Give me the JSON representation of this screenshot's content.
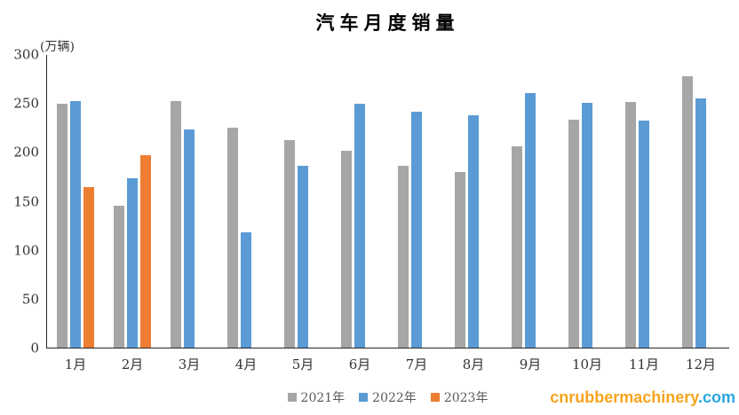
{
  "chart_data": {
    "type": "bar",
    "title": "汽车月度销量",
    "unit_label": "(万辆)",
    "categories": [
      "1月",
      "2月",
      "3月",
      "4月",
      "5月",
      "6月",
      "7月",
      "8月",
      "9月",
      "10月",
      "11月",
      "12月"
    ],
    "series": [
      {
        "name": "2021年",
        "color": "#A6A6A6",
        "values": [
          250.3,
          145.5,
          252.6,
          225.2,
          212.8,
          201.5,
          186.4,
          179.9,
          206.7,
          233.3,
          252.2,
          278.6
        ]
      },
      {
        "name": "2022年",
        "color": "#5B9BD5",
        "values": [
          253.1,
          173.7,
          223.4,
          118.1,
          186.2,
          250.2,
          242.0,
          238.3,
          261.0,
          250.5,
          232.8,
          255.6
        ]
      },
      {
        "name": "2023年",
        "color": "#ED7D31",
        "values": [
          164.9,
          197.6,
          null,
          null,
          null,
          null,
          null,
          null,
          null,
          null,
          null,
          null
        ]
      }
    ],
    "ylim": [
      0,
      300
    ],
    "yticks": [
      0,
      50,
      100,
      150,
      200,
      250,
      300
    ],
    "grid": false,
    "legend_position": "bottom",
    "axis_color": "#262626"
  },
  "watermark": {
    "name": "cnrubbermachinery",
    "tld": ".com",
    "name_color": "#F7A41D",
    "tld_color": "#2BA7E0"
  }
}
